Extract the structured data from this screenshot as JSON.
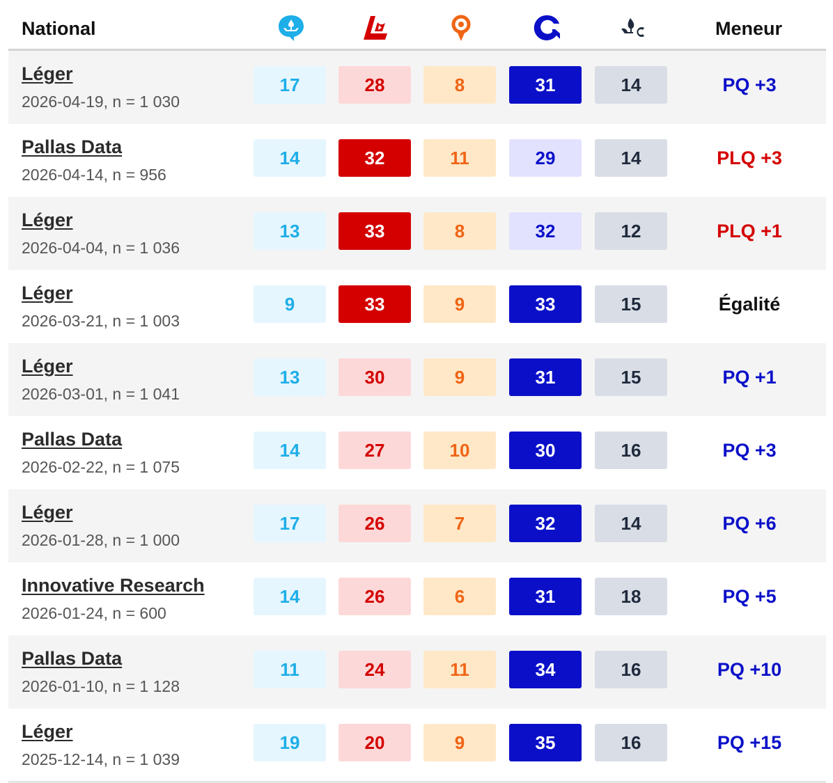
{
  "header": {
    "title": "National",
    "leader_label": "Meneur",
    "party_icons": [
      "qs-icon",
      "plq-icon",
      "caq-icon",
      "pq-icon",
      "pcq-icon"
    ]
  },
  "party_colors": {
    "qs": {
      "light_bg": "#e6f6ff",
      "light_text": "#1eaee8",
      "strong_bg": "#1eaee8",
      "strong_text": "#ffffff"
    },
    "plq": {
      "light_bg": "#fdd8d8",
      "light_text": "#d40000",
      "strong_bg": "#d40000",
      "strong_text": "#ffffff"
    },
    "caq": {
      "light_bg": "#ffe8c8",
      "light_text": "#f06414",
      "strong_bg": "#f06414",
      "strong_text": "#ffffff"
    },
    "pq": {
      "light_bg": "#e2e2ff",
      "light_text": "#0b10c8",
      "strong_bg": "#0b10c8",
      "strong_text": "#ffffff"
    },
    "pcq": {
      "light_bg": "#d9dde6",
      "light_text": "#1f2a3c",
      "strong_bg": "#1f2a3c",
      "strong_text": "#ffffff"
    }
  },
  "polls": [
    {
      "firm": "Léger",
      "meta": "2026-04-19, n = 1 030",
      "values": [
        "17",
        "28",
        "8",
        "31",
        "14"
      ],
      "strong": [
        false,
        false,
        false,
        true,
        false
      ],
      "leader": "PQ +3",
      "leader_color": "#0b10c8"
    },
    {
      "firm": "Pallas Data",
      "meta": "2026-04-14, n = 956",
      "values": [
        "14",
        "32",
        "11",
        "29",
        "14"
      ],
      "strong": [
        false,
        true,
        false,
        false,
        false
      ],
      "leader": "PLQ +3",
      "leader_color": "#d40000"
    },
    {
      "firm": "Léger",
      "meta": "2026-04-04, n = 1 036",
      "values": [
        "13",
        "33",
        "8",
        "32",
        "12"
      ],
      "strong": [
        false,
        true,
        false,
        false,
        false
      ],
      "leader": "PLQ +1",
      "leader_color": "#d40000"
    },
    {
      "firm": "Léger",
      "meta": "2026-03-21, n = 1 003",
      "values": [
        "9",
        "33",
        "9",
        "33",
        "15"
      ],
      "strong": [
        false,
        true,
        false,
        true,
        false
      ],
      "leader": "Égalité",
      "leader_color": "#111111"
    },
    {
      "firm": "Léger",
      "meta": "2026-03-01, n = 1 041",
      "values": [
        "13",
        "30",
        "9",
        "31",
        "15"
      ],
      "strong": [
        false,
        false,
        false,
        true,
        false
      ],
      "leader": "PQ +1",
      "leader_color": "#0b10c8"
    },
    {
      "firm": "Pallas Data",
      "meta": "2026-02-22, n = 1 075",
      "values": [
        "14",
        "27",
        "10",
        "30",
        "16"
      ],
      "strong": [
        false,
        false,
        false,
        true,
        false
      ],
      "leader": "PQ +3",
      "leader_color": "#0b10c8"
    },
    {
      "firm": "Léger",
      "meta": "2026-01-28, n = 1 000",
      "values": [
        "17",
        "26",
        "7",
        "32",
        "14"
      ],
      "strong": [
        false,
        false,
        false,
        true,
        false
      ],
      "leader": "PQ +6",
      "leader_color": "#0b10c8"
    },
    {
      "firm": "Innovative Research",
      "meta": "2026-01-24, n = 600",
      "values": [
        "14",
        "26",
        "6",
        "31",
        "18"
      ],
      "strong": [
        false,
        false,
        false,
        true,
        false
      ],
      "leader": "PQ +5",
      "leader_color": "#0b10c8"
    },
    {
      "firm": "Pallas Data",
      "meta": "2026-01-10, n = 1 128",
      "values": [
        "11",
        "24",
        "11",
        "34",
        "16"
      ],
      "strong": [
        false,
        false,
        false,
        true,
        false
      ],
      "leader": "PQ +10",
      "leader_color": "#0b10c8"
    },
    {
      "firm": "Léger",
      "meta": "2025-12-14, n = 1 039",
      "values": [
        "19",
        "20",
        "9",
        "35",
        "16"
      ],
      "strong": [
        false,
        false,
        false,
        true,
        false
      ],
      "leader": "PQ +15",
      "leader_color": "#0b10c8"
    }
  ]
}
